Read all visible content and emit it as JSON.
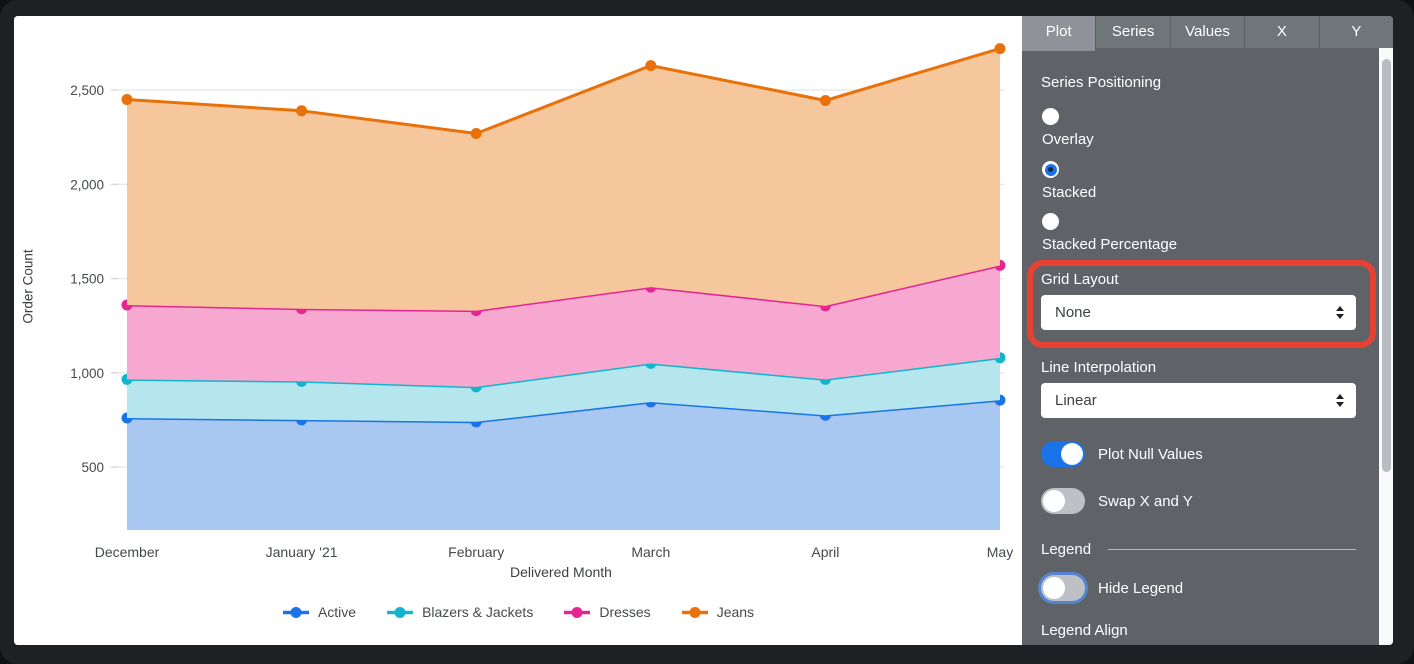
{
  "chart_data": {
    "type": "area",
    "stacked": true,
    "title": "",
    "xlabel": "Delivered Month",
    "ylabel": "Order Count",
    "x": [
      "December",
      "January '21",
      "February",
      "March",
      "April",
      "May"
    ],
    "series": [
      {
        "name": "Active",
        "color": "#1a73e8",
        "fill": "#a9c8f1",
        "values": [
          760,
          750,
          740,
          845,
          775,
          855
        ]
      },
      {
        "name": "Blazers & Jackets",
        "color": "#12b5cb",
        "fill": "#b5e6ee",
        "values": [
          205,
          205,
          185,
          205,
          190,
          225
        ]
      },
      {
        "name": "Dresses",
        "color": "#e52592",
        "fill": "#f7a8d1",
        "values": [
          395,
          385,
          405,
          405,
          390,
          490
        ]
      },
      {
        "name": "Jeans",
        "color": "#e8710a",
        "fill": "#f6c79d",
        "values": [
          1090,
          1050,
          940,
          1175,
          1090,
          1150
        ]
      }
    ],
    "stacked_totals": {
      "active": [
        760,
        750,
        740,
        845,
        775,
        855
      ],
      "plus_blazers": [
        965,
        955,
        925,
        1050,
        965,
        1080
      ],
      "plus_dresses": [
        1360,
        1340,
        1330,
        1455,
        1355,
        1570
      ],
      "plus_jeans_total": [
        2450,
        2390,
        2270,
        2630,
        2445,
        2720
      ]
    },
    "yticks": [
      500,
      1000,
      1500,
      2000,
      2500
    ],
    "ytick_labels": [
      "500",
      "1,000",
      "1,500",
      "2,000",
      "2,500"
    ],
    "ylim": [
      166,
      2734
    ],
    "grid": true,
    "legend_position": "bottom"
  },
  "panel": {
    "tabs": [
      {
        "label": "Plot",
        "active": true
      },
      {
        "label": "Series",
        "active": false
      },
      {
        "label": "Values",
        "active": false
      },
      {
        "label": "X",
        "active": false
      },
      {
        "label": "Y",
        "active": false
      }
    ],
    "series_positioning": {
      "label": "Series Positioning",
      "options": [
        {
          "label": "Overlay",
          "selected": false
        },
        {
          "label": "Stacked",
          "selected": true
        },
        {
          "label": "Stacked Percentage",
          "selected": false
        }
      ]
    },
    "grid_layout": {
      "label": "Grid Layout",
      "value": "None"
    },
    "line_interpolation": {
      "label": "Line Interpolation",
      "value": "Linear"
    },
    "plot_null_values": {
      "label": "Plot Null Values",
      "on": true
    },
    "swap_x_y": {
      "label": "Swap X and Y",
      "on": false
    },
    "legend_section": {
      "header": "Legend",
      "hide_legend": {
        "label": "Hide Legend",
        "on": false,
        "focused": true
      },
      "legend_align": {
        "label": "Legend Align"
      }
    }
  },
  "annotation": {
    "shape": "highlight-box",
    "color": "#e74133"
  }
}
